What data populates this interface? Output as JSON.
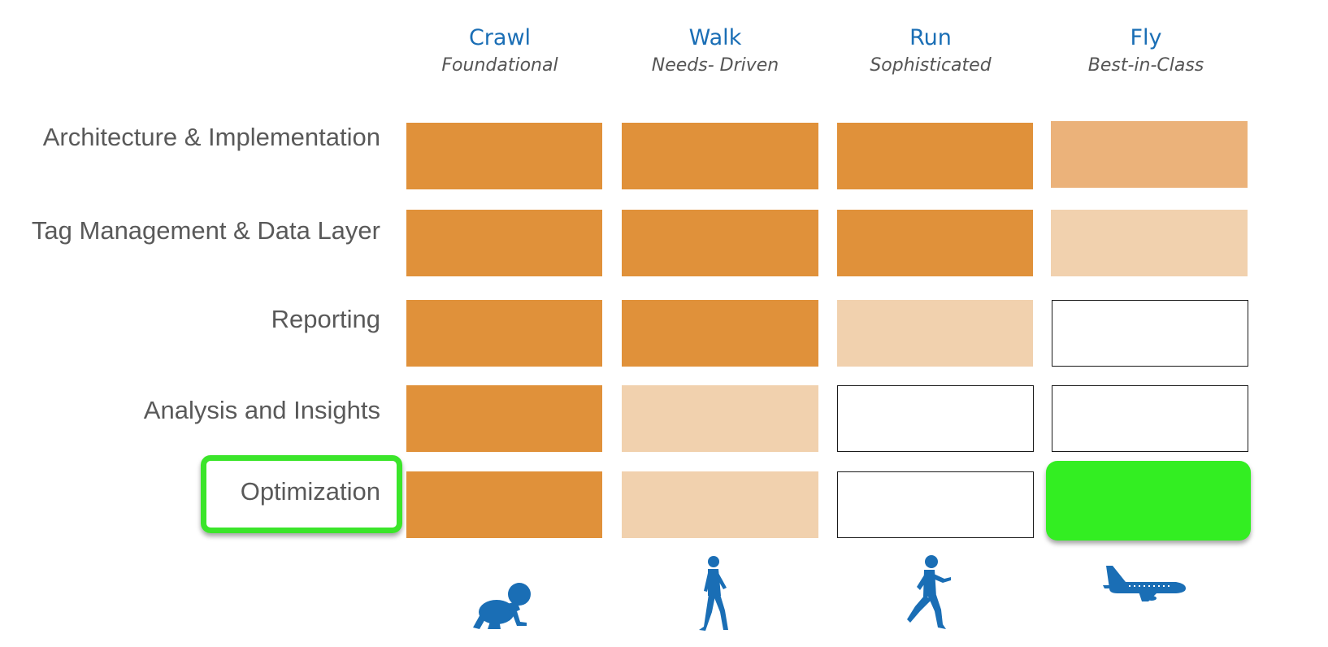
{
  "colors": {
    "header_blue": "#1a6eb5",
    "label_gray": "#595959",
    "full": "#e0913a",
    "mid": "#ebb27a",
    "light": "#f1d1ae",
    "highlight_green": "#33ee22"
  },
  "columns": [
    {
      "title": "Crawl",
      "subtitle": "Foundational",
      "icon": "crawling-baby-icon"
    },
    {
      "title": "Walk",
      "subtitle": "Needs- Driven",
      "icon": "walking-person-icon"
    },
    {
      "title": "Run",
      "subtitle": "Sophisticated",
      "icon": "running-person-icon"
    },
    {
      "title": "Fly",
      "subtitle": "Best-in-Class",
      "icon": "airplane-icon"
    }
  ],
  "rows": [
    {
      "label": "Architecture & Implementation",
      "levels": [
        "full",
        "full",
        "full",
        "mid"
      ]
    },
    {
      "label": "Tag Management & Data Layer",
      "levels": [
        "full",
        "full",
        "full",
        "light"
      ]
    },
    {
      "label": "Reporting",
      "levels": [
        "full",
        "full",
        "light",
        "empty"
      ]
    },
    {
      "label": "Analysis and Insights",
      "levels": [
        "full",
        "light",
        "empty",
        "empty"
      ]
    },
    {
      "label": "Optimization",
      "levels": [
        "full",
        "light",
        "empty",
        "highlight"
      ],
      "highlighted": true
    }
  ]
}
